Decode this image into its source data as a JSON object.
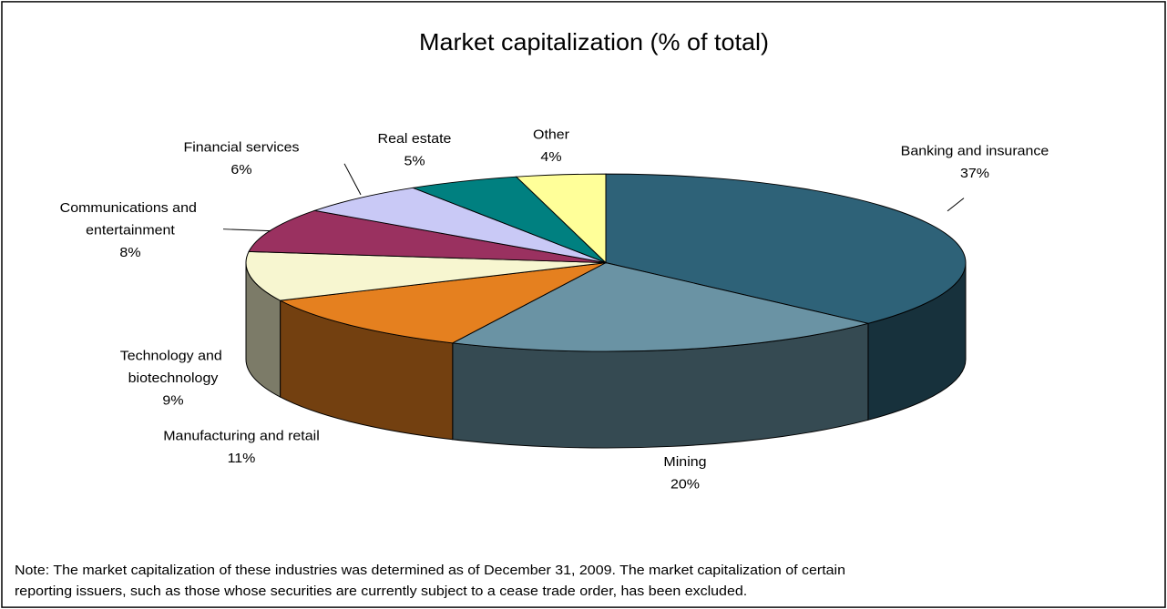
{
  "chart_data": {
    "type": "pie",
    "title": "Market capitalization (% of total)",
    "categories": [
      "Banking and insurance",
      "Mining",
      "Manufacturing and retail",
      "Technology and biotechnology",
      "Communications and entertainment",
      "Financial services",
      "Real estate",
      "Other"
    ],
    "values": [
      37,
      20,
      11,
      9,
      8,
      6,
      5,
      4
    ],
    "value_labels": [
      "37%",
      "20%",
      "11%",
      "9%",
      "8%",
      "6%",
      "5%",
      "4%"
    ],
    "colors": [
      "#2e6278",
      "#6a93a4",
      "#e5801f",
      "#f7f6d0",
      "#9a3160",
      "#c9c9f6",
      "#008080",
      "#ffff99"
    ],
    "note": "Note: The market capitalization of these industries was determined as of December 31, 2009. The market capitalization of certain reporting issuers, such as those whose securities are currently subject to a cease trade order, has been excluded."
  }
}
